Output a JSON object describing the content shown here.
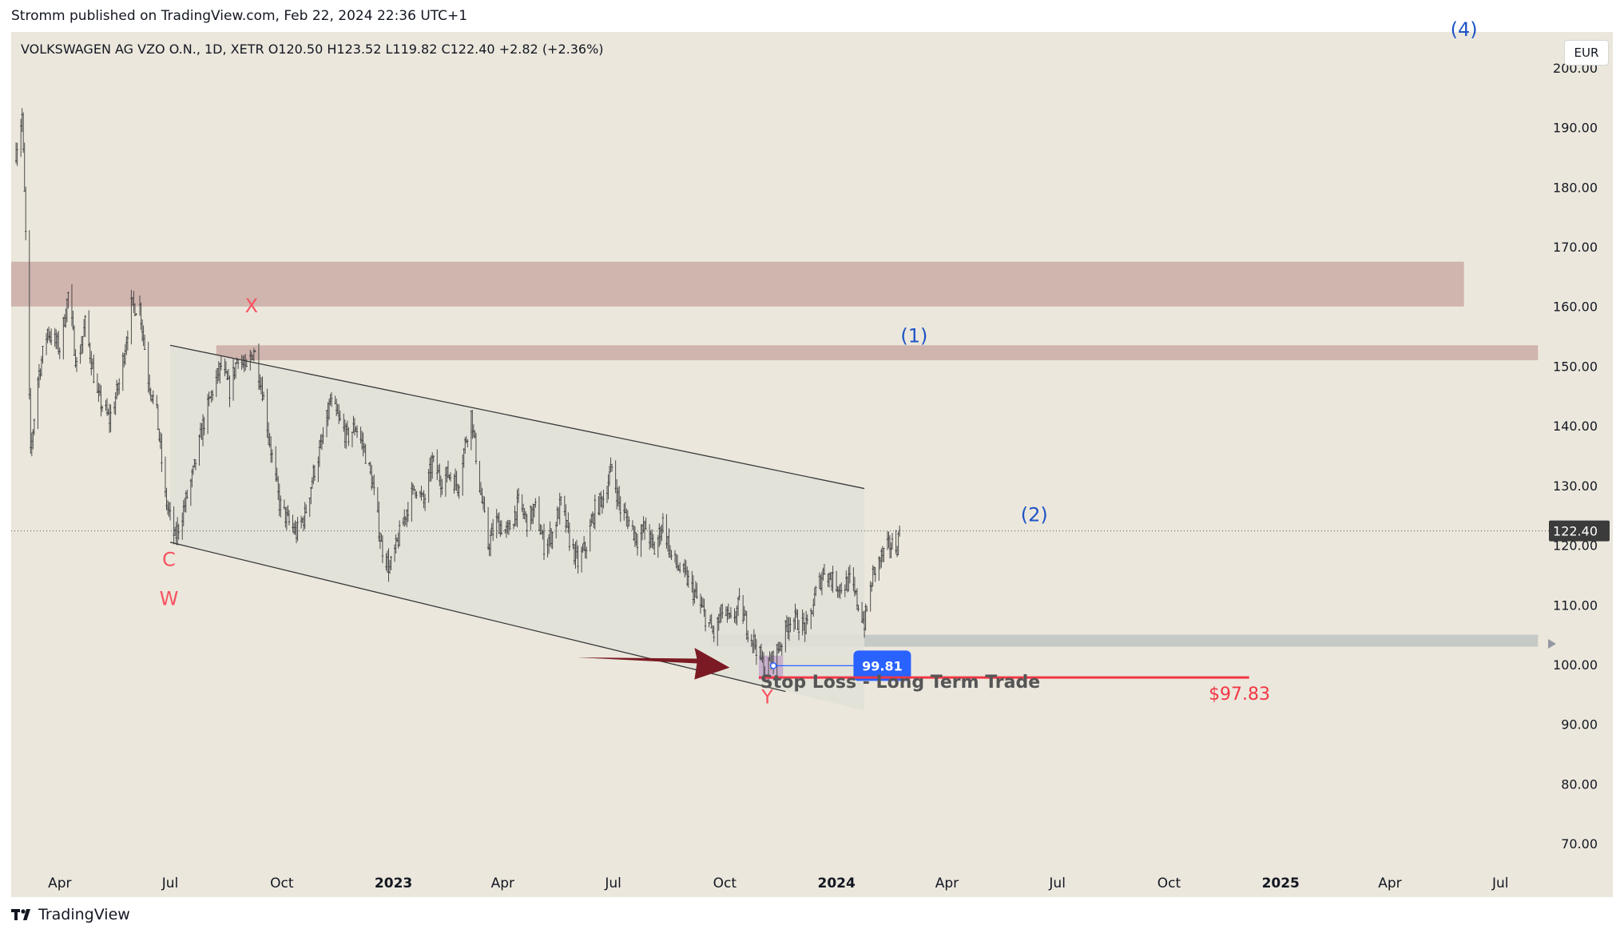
{
  "header": {
    "published_text": "Stromm published on TradingView.com, Feb 22, 2024 22:36 UTC+1"
  },
  "symbol_info": "VOLKSWAGEN AG VZO O.N., 1D, XETR  O120.50  H123.52  L119.82  C122.40  +2.82 (+2.36%)",
  "currency": "EUR",
  "footer": {
    "brand": "TradingView"
  },
  "chart_data": {
    "type": "candlestick",
    "symbol": "VOLKSWAGEN AG VZO O.N.",
    "interval": "1D",
    "exchange": "XETR",
    "ohlc_last": {
      "open": 120.5,
      "high": 123.52,
      "low": 119.82,
      "close": 122.4,
      "change": 2.82,
      "change_pct": 2.36
    },
    "x_range": [
      "2022-02-20",
      "2025-08-10"
    ],
    "y_range": [
      66,
      206
    ],
    "y_ticks": [
      70,
      80,
      90,
      100,
      110,
      120,
      130,
      140,
      150,
      160,
      170,
      180,
      190,
      200
    ],
    "y_tick_labels": [
      "70.00",
      "80.00",
      "90.00",
      "100.00",
      "110.00",
      "120.00",
      "130.00",
      "140.00",
      "150.00",
      "160.00",
      "170.00",
      "180.00",
      "190.00",
      "200.00"
    ],
    "x_ticks": [
      {
        "date": "2022-04-01",
        "label": "Apr",
        "bold": false
      },
      {
        "date": "2022-07-01",
        "label": "Jul",
        "bold": false
      },
      {
        "date": "2022-10-01",
        "label": "Oct",
        "bold": false
      },
      {
        "date": "2023-01-01",
        "label": "2023",
        "bold": true
      },
      {
        "date": "2023-04-01",
        "label": "Apr",
        "bold": false
      },
      {
        "date": "2023-07-01",
        "label": "Jul",
        "bold": false
      },
      {
        "date": "2023-10-01",
        "label": "Oct",
        "bold": false
      },
      {
        "date": "2024-01-01",
        "label": "2024",
        "bold": true
      },
      {
        "date": "2024-04-01",
        "label": "Apr",
        "bold": false
      },
      {
        "date": "2024-07-01",
        "label": "Jul",
        "bold": false
      },
      {
        "date": "2024-10-01",
        "label": "Oct",
        "bold": false
      },
      {
        "date": "2025-01-01",
        "label": "2025",
        "bold": true
      },
      {
        "date": "2025-04-01",
        "label": "Apr",
        "bold": false
      },
      {
        "date": "2025-07-01",
        "label": "Jul",
        "bold": false
      }
    ],
    "price_path": [
      [
        "2022-02-24",
        186
      ],
      [
        "2022-03-01",
        192
      ],
      [
        "2022-03-04",
        172
      ],
      [
        "2022-03-08",
        135
      ],
      [
        "2022-03-14",
        148
      ],
      [
        "2022-03-22",
        156
      ],
      [
        "2022-04-01",
        153
      ],
      [
        "2022-04-08",
        162
      ],
      [
        "2022-04-15",
        150
      ],
      [
        "2022-04-22",
        157
      ],
      [
        "2022-05-02",
        145
      ],
      [
        "2022-05-12",
        141
      ],
      [
        "2022-05-20",
        147
      ],
      [
        "2022-05-30",
        160
      ],
      [
        "2022-06-06",
        160
      ],
      [
        "2022-06-13",
        148
      ],
      [
        "2022-06-20",
        142
      ],
      [
        "2022-06-27",
        128
      ],
      [
        "2022-07-05",
        121
      ],
      [
        "2022-07-12",
        126
      ],
      [
        "2022-07-20",
        132
      ],
      [
        "2022-07-28",
        140
      ],
      [
        "2022-08-05",
        146
      ],
      [
        "2022-08-12",
        150
      ],
      [
        "2022-08-19",
        146
      ],
      [
        "2022-08-26",
        152
      ],
      [
        "2022-09-02",
        149
      ],
      [
        "2022-09-08",
        153
      ],
      [
        "2022-09-15",
        146
      ],
      [
        "2022-09-22",
        136
      ],
      [
        "2022-09-29",
        127
      ],
      [
        "2022-10-06",
        124
      ],
      [
        "2022-10-13",
        122
      ],
      [
        "2022-10-20",
        125
      ],
      [
        "2022-10-27",
        132
      ],
      [
        "2022-11-03",
        137
      ],
      [
        "2022-11-10",
        144
      ],
      [
        "2022-11-17",
        141
      ],
      [
        "2022-11-24",
        138
      ],
      [
        "2022-12-01",
        140
      ],
      [
        "2022-12-08",
        136
      ],
      [
        "2022-12-15",
        130
      ],
      [
        "2022-12-22",
        120
      ],
      [
        "2022-12-29",
        116
      ],
      [
        "2023-01-05",
        121
      ],
      [
        "2023-01-12",
        126
      ],
      [
        "2023-01-19",
        130
      ],
      [
        "2023-01-26",
        127
      ],
      [
        "2023-02-02",
        134
      ],
      [
        "2023-02-09",
        131
      ],
      [
        "2023-02-16",
        132
      ],
      [
        "2023-02-23",
        130
      ],
      [
        "2023-03-01",
        137
      ],
      [
        "2023-03-06",
        142
      ],
      [
        "2023-03-13",
        130
      ],
      [
        "2023-03-20",
        120
      ],
      [
        "2023-03-27",
        124
      ],
      [
        "2023-04-05",
        122
      ],
      [
        "2023-04-14",
        127
      ],
      [
        "2023-04-21",
        124
      ],
      [
        "2023-04-28",
        126
      ],
      [
        "2023-05-05",
        120
      ],
      [
        "2023-05-12",
        122
      ],
      [
        "2023-05-19",
        127
      ],
      [
        "2023-05-26",
        121
      ],
      [
        "2023-06-02",
        117
      ],
      [
        "2023-06-09",
        120
      ],
      [
        "2023-06-16",
        126
      ],
      [
        "2023-06-23",
        128
      ],
      [
        "2023-06-30",
        133
      ],
      [
        "2023-07-07",
        126
      ],
      [
        "2023-07-14",
        124
      ],
      [
        "2023-07-21",
        121
      ],
      [
        "2023-07-28",
        123
      ],
      [
        "2023-08-04",
        119
      ],
      [
        "2023-08-11",
        124
      ],
      [
        "2023-08-18",
        118
      ],
      [
        "2023-08-25",
        116
      ],
      [
        "2023-09-01",
        114
      ],
      [
        "2023-09-08",
        111
      ],
      [
        "2023-09-15",
        108
      ],
      [
        "2023-09-22",
        105
      ],
      [
        "2023-09-29",
        109
      ],
      [
        "2023-10-06",
        107
      ],
      [
        "2023-10-13",
        110
      ],
      [
        "2023-10-20",
        106
      ],
      [
        "2023-10-27",
        103
      ],
      [
        "2023-11-03",
        99
      ],
      [
        "2023-11-10",
        101
      ],
      [
        "2023-11-17",
        104
      ],
      [
        "2023-11-24",
        108
      ],
      [
        "2023-12-01",
        107
      ],
      [
        "2023-12-08",
        106
      ],
      [
        "2023-12-15",
        112
      ],
      [
        "2023-12-22",
        116
      ],
      [
        "2023-12-29",
        114
      ],
      [
        "2024-01-05",
        113
      ],
      [
        "2024-01-12",
        114
      ],
      [
        "2024-01-19",
        110
      ],
      [
        "2024-01-24",
        107
      ],
      [
        "2024-01-31",
        115
      ],
      [
        "2024-02-07",
        118
      ],
      [
        "2024-02-14",
        120
      ],
      [
        "2024-02-20",
        120
      ],
      [
        "2024-02-22",
        122.4
      ]
    ],
    "channel": {
      "upper": [
        [
          "2022-07-01",
          153.5
        ],
        [
          "2024-01-24",
          129.5
        ]
      ],
      "lower": [
        [
          "2022-07-01",
          120.5
        ],
        [
          "2023-11-20",
          95.5
        ]
      ],
      "fill_end": "2024-01-24"
    },
    "zones": [
      {
        "name": "upper-resistance",
        "from": "2022-02-20",
        "to": "2025-06-01",
        "y1": 160,
        "y2": 167.5,
        "color": "#d0b4ae"
      },
      {
        "name": "lower-resistance",
        "from": "2022-08-08",
        "to": "2025-08-01",
        "y1": 151,
        "y2": 153.5,
        "color": "#d0b4ae"
      },
      {
        "name": "support",
        "from": "2023-09-19",
        "to": "2025-08-01",
        "y1": 103,
        "y2": 105,
        "color": "#c5cac6"
      }
    ],
    "annotations": [
      {
        "text": "X",
        "date": "2022-09-06",
        "y": 159,
        "color": "#f7525f"
      },
      {
        "text": "C",
        "date": "2022-06-30",
        "y": 116.5,
        "color": "#f7525f"
      },
      {
        "text": "W",
        "date": "2022-06-30",
        "y": 110,
        "color": "#f7525f"
      },
      {
        "text": "Y",
        "date": "2023-11-05",
        "y": 93.5,
        "color": "#f7525f"
      },
      {
        "text": "(1)",
        "date": "2024-03-05",
        "y": 154,
        "color": "#1e54c6"
      },
      {
        "text": "(2)",
        "date": "2024-06-12",
        "y": 124,
        "color": "#1e54c6"
      },
      {
        "text": "(4)",
        "date": "2025-06-01",
        "y": 205.3,
        "color": "#1e54c6"
      }
    ],
    "stop_loss": {
      "label": "Stop Loss - Long Term Trade",
      "price_label": "$97.83",
      "value": 97.83,
      "from": "2023-10-29",
      "to": "2024-12-06",
      "color": "#f23645"
    },
    "marker": {
      "label": "99.81",
      "value": 99.81,
      "from": "2023-11-10",
      "to": "2024-01-15",
      "color": "#2962ff"
    },
    "last_price": {
      "label": "122.40",
      "value": 122.4
    }
  }
}
